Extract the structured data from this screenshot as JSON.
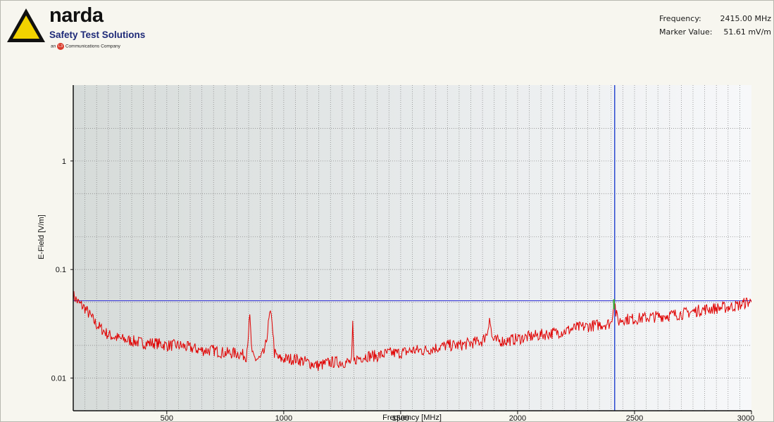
{
  "brand": {
    "name": "narda",
    "tagline": "Safety Test Solutions",
    "subline_prefix": "an",
    "subline_mark": "L3",
    "subline_suffix": "Communications Company",
    "colors": {
      "triangle": "#f2d200",
      "triangle_outline": "#111111",
      "tagline": "#1e2a78",
      "mark": "#d93a2a"
    }
  },
  "readout": {
    "frequency_label": "Frequency:",
    "frequency_value": "2415.00 MHz",
    "marker_label": "Marker Value:",
    "marker_value": "51.61 mV/m"
  },
  "chart_data": {
    "type": "line",
    "xlabel": "Frequency [MHz]",
    "ylabel": "E-Field [V/m]",
    "xlim": [
      100,
      3000
    ],
    "ylim": [
      0.005,
      5
    ],
    "yscale": "log",
    "grid": true,
    "x_ticks": [
      500,
      1000,
      1500,
      2000,
      2500,
      3000
    ],
    "y_ticks": [
      {
        "value": 0.01,
        "label": "0.01"
      },
      {
        "value": 0.1,
        "label": "0.1"
      },
      {
        "value": 1,
        "label": "1"
      }
    ],
    "series": [
      {
        "color": "#e00000",
        "x": [
          100,
          120,
          150,
          200,
          250,
          300,
          350,
          400,
          450,
          500,
          550,
          600,
          650,
          700,
          750,
          800,
          840,
          855,
          865,
          880,
          900,
          920,
          940,
          950,
          960,
          980,
          1000,
          1050,
          1100,
          1150,
          1200,
          1250,
          1290,
          1295,
          1300,
          1310,
          1350,
          1400,
          1450,
          1500,
          1550,
          1600,
          1650,
          1700,
          1750,
          1800,
          1850,
          1870,
          1880,
          1890,
          1900,
          1950,
          2000,
          2050,
          2100,
          2150,
          2200,
          2250,
          2300,
          2350,
          2400,
          2410,
          2415,
          2420,
          2430,
          2450,
          2500,
          2550,
          2600,
          2650,
          2700,
          2750,
          2800,
          2850,
          2900,
          2950,
          2980,
          3000
        ],
        "values": [
          0.058,
          0.05,
          0.044,
          0.031,
          0.025,
          0.023,
          0.022,
          0.021,
          0.021,
          0.02,
          0.02,
          0.019,
          0.018,
          0.018,
          0.017,
          0.017,
          0.016,
          0.036,
          0.016,
          0.015,
          0.015,
          0.018,
          0.038,
          0.035,
          0.017,
          0.015,
          0.015,
          0.015,
          0.014,
          0.013,
          0.014,
          0.014,
          0.014,
          0.03,
          0.014,
          0.015,
          0.016,
          0.016,
          0.017,
          0.017,
          0.018,
          0.018,
          0.019,
          0.02,
          0.02,
          0.021,
          0.022,
          0.026,
          0.037,
          0.024,
          0.022,
          0.022,
          0.023,
          0.024,
          0.025,
          0.026,
          0.027,
          0.029,
          0.03,
          0.031,
          0.032,
          0.046,
          0.052,
          0.04,
          0.033,
          0.035,
          0.035,
          0.036,
          0.037,
          0.038,
          0.039,
          0.041,
          0.043,
          0.044,
          0.045,
          0.047,
          0.05,
          0.05
        ]
      }
    ],
    "reference_lines": [
      {
        "axis": "y",
        "value": 0.05161,
        "color": "#3c3cd8"
      },
      {
        "axis": "x",
        "value": 2415,
        "color": "#2b4ad0"
      }
    ],
    "marker": {
      "x": 2415,
      "y": 0.05161,
      "color": "#3aa83a"
    }
  }
}
